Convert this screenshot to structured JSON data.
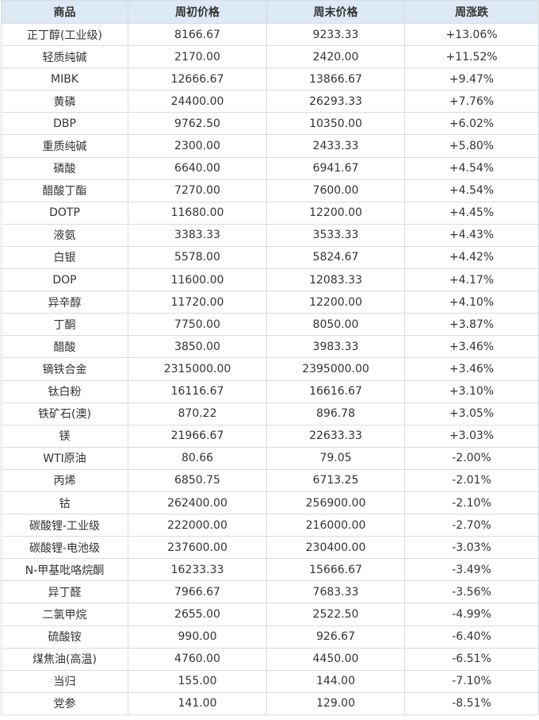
{
  "colors": {
    "header_bg": "#dde9f5",
    "border": "#d6dde3",
    "text": "#333333",
    "rise": "#e0242c",
    "fall": "#2b9131"
  },
  "table": {
    "headers": [
      "商品",
      "周初价格",
      "周末价格",
      "周涨跌"
    ],
    "rows": [
      {
        "name": "正丁醇(工业级)",
        "start": "8166.67",
        "end": "9233.33",
        "change": "+13.06%",
        "direction": "up"
      },
      {
        "name": "轻质纯碱",
        "start": "2170.00",
        "end": "2420.00",
        "change": "+11.52%",
        "direction": "up"
      },
      {
        "name": "MIBK",
        "start": "12666.67",
        "end": "13866.67",
        "change": "+9.47%",
        "direction": "up"
      },
      {
        "name": "黄磷",
        "start": "24400.00",
        "end": "26293.33",
        "change": "+7.76%",
        "direction": "up"
      },
      {
        "name": "DBP",
        "start": "9762.50",
        "end": "10350.00",
        "change": "+6.02%",
        "direction": "up"
      },
      {
        "name": "重质纯碱",
        "start": "2300.00",
        "end": "2433.33",
        "change": "+5.80%",
        "direction": "up"
      },
      {
        "name": "磷酸",
        "start": "6640.00",
        "end": "6941.67",
        "change": "+4.54%",
        "direction": "up"
      },
      {
        "name": "醋酸丁酯",
        "start": "7270.00",
        "end": "7600.00",
        "change": "+4.54%",
        "direction": "up"
      },
      {
        "name": "DOTP",
        "start": "11680.00",
        "end": "12200.00",
        "change": "+4.45%",
        "direction": "up"
      },
      {
        "name": "液氨",
        "start": "3383.33",
        "end": "3533.33",
        "change": "+4.43%",
        "direction": "up"
      },
      {
        "name": "白银",
        "start": "5578.00",
        "end": "5824.67",
        "change": "+4.42%",
        "direction": "up"
      },
      {
        "name": "DOP",
        "start": "11600.00",
        "end": "12083.33",
        "change": "+4.17%",
        "direction": "up"
      },
      {
        "name": "异辛醇",
        "start": "11720.00",
        "end": "12200.00",
        "change": "+4.10%",
        "direction": "up"
      },
      {
        "name": "丁酮",
        "start": "7750.00",
        "end": "8050.00",
        "change": "+3.87%",
        "direction": "up"
      },
      {
        "name": "醋酸",
        "start": "3850.00",
        "end": "3983.33",
        "change": "+3.46%",
        "direction": "up"
      },
      {
        "name": "镝铁合金",
        "start": "2315000.00",
        "end": "2395000.00",
        "change": "+3.46%",
        "direction": "up"
      },
      {
        "name": "钛白粉",
        "start": "16116.67",
        "end": "16616.67",
        "change": "+3.10%",
        "direction": "up"
      },
      {
        "name": "铁矿石(澳)",
        "start": "870.22",
        "end": "896.78",
        "change": "+3.05%",
        "direction": "up"
      },
      {
        "name": "镁",
        "start": "21966.67",
        "end": "22633.33",
        "change": "+3.03%",
        "direction": "up"
      },
      {
        "name": "WTI原油",
        "start": "80.66",
        "end": "79.05",
        "change": "-2.00%",
        "direction": "down"
      },
      {
        "name": "丙烯",
        "start": "6850.75",
        "end": "6713.25",
        "change": "-2.01%",
        "direction": "down"
      },
      {
        "name": "钴",
        "start": "262400.00",
        "end": "256900.00",
        "change": "-2.10%",
        "direction": "down"
      },
      {
        "name": "碳酸锂-工业级",
        "start": "222000.00",
        "end": "216000.00",
        "change": "-2.70%",
        "direction": "down"
      },
      {
        "name": "碳酸锂-电池级",
        "start": "237600.00",
        "end": "230400.00",
        "change": "-3.03%",
        "direction": "down"
      },
      {
        "name": "N-甲基吡咯烷酮",
        "start": "16233.33",
        "end": "15666.67",
        "change": "-3.49%",
        "direction": "down"
      },
      {
        "name": "异丁醛",
        "start": "7966.67",
        "end": "7683.33",
        "change": "-3.56%",
        "direction": "down"
      },
      {
        "name": "二氯甲烷",
        "start": "2655.00",
        "end": "2522.50",
        "change": "-4.99%",
        "direction": "down"
      },
      {
        "name": "硫酸铵",
        "start": "990.00",
        "end": "926.67",
        "change": "-6.40%",
        "direction": "down"
      },
      {
        "name": "煤焦油(高温)",
        "start": "4760.00",
        "end": "4450.00",
        "change": "-6.51%",
        "direction": "down"
      },
      {
        "name": "当归",
        "start": "155.00",
        "end": "144.00",
        "change": "-7.10%",
        "direction": "down"
      },
      {
        "name": "党参",
        "start": "141.00",
        "end": "129.00",
        "change": "-8.51%",
        "direction": "down"
      }
    ]
  }
}
